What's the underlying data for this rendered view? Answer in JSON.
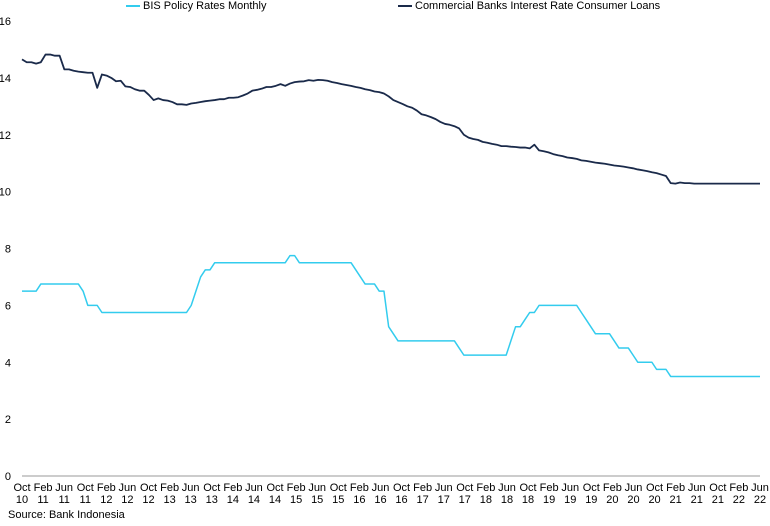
{
  "source": "Source: Bank Indonesia",
  "chart_data": {
    "type": "line",
    "title": "",
    "xlabel": "",
    "ylabel": "",
    "ylim": [
      0,
      16
    ],
    "yticks": [
      0,
      2,
      4,
      6,
      8,
      10,
      12,
      14,
      16
    ],
    "grid": false,
    "legend_position": "top",
    "x_tick_labels": [
      [
        "Oct",
        "10"
      ],
      [
        "Feb",
        "11"
      ],
      [
        "Jun",
        "11"
      ],
      [
        "Oct",
        "11"
      ],
      [
        "Feb",
        "12"
      ],
      [
        "Jun",
        "12"
      ],
      [
        "Oct",
        "12"
      ],
      [
        "Feb",
        "13"
      ],
      [
        "Jun",
        "13"
      ],
      [
        "Oct",
        "13"
      ],
      [
        "Feb",
        "14"
      ],
      [
        "Jun",
        "14"
      ],
      [
        "Oct",
        "14"
      ],
      [
        "Feb",
        "15"
      ],
      [
        "Jun",
        "15"
      ],
      [
        "Oct",
        "15"
      ],
      [
        "Feb",
        "16"
      ],
      [
        "Jun",
        "16"
      ],
      [
        "Oct",
        "16"
      ],
      [
        "Feb",
        "17"
      ],
      [
        "Jun",
        "17"
      ],
      [
        "Oct",
        "17"
      ],
      [
        "Feb",
        "18"
      ],
      [
        "Jun",
        "18"
      ],
      [
        "Oct",
        "18"
      ],
      [
        "Feb",
        "19"
      ],
      [
        "Jun",
        "19"
      ],
      [
        "Oct",
        "19"
      ],
      [
        "Feb",
        "20"
      ],
      [
        "Jun",
        "20"
      ],
      [
        "Oct",
        "20"
      ],
      [
        "Feb",
        "21"
      ],
      [
        "Jun",
        "21"
      ],
      [
        "Oct",
        "21"
      ],
      [
        "Feb",
        "22"
      ],
      [
        "Jun",
        "22"
      ]
    ],
    "series": [
      {
        "name": "BIS Policy Rates Monthly",
        "color": "#33ccee",
        "values": [
          6.5,
          6.5,
          6.5,
          6.5,
          6.75,
          6.75,
          6.75,
          6.75,
          6.75,
          6.75,
          6.75,
          6.75,
          6.75,
          6.5,
          6.0,
          6.0,
          6.0,
          5.75,
          5.75,
          5.75,
          5.75,
          5.75,
          5.75,
          5.75,
          5.75,
          5.75,
          5.75,
          5.75,
          5.75,
          5.75,
          5.75,
          5.75,
          5.75,
          5.75,
          5.75,
          5.75,
          6.0,
          6.5,
          7.0,
          7.25,
          7.25,
          7.5,
          7.5,
          7.5,
          7.5,
          7.5,
          7.5,
          7.5,
          7.5,
          7.5,
          7.5,
          7.5,
          7.5,
          7.5,
          7.5,
          7.5,
          7.5,
          7.75,
          7.75,
          7.5,
          7.5,
          7.5,
          7.5,
          7.5,
          7.5,
          7.5,
          7.5,
          7.5,
          7.5,
          7.5,
          7.5,
          7.25,
          7.0,
          6.75,
          6.75,
          6.75,
          6.5,
          6.5,
          5.25,
          5.0,
          4.75,
          4.75,
          4.75,
          4.75,
          4.75,
          4.75,
          4.75,
          4.75,
          4.75,
          4.75,
          4.75,
          4.75,
          4.75,
          4.5,
          4.25,
          4.25,
          4.25,
          4.25,
          4.25,
          4.25,
          4.25,
          4.25,
          4.25,
          4.25,
          4.75,
          5.25,
          5.25,
          5.5,
          5.75,
          5.75,
          6.0,
          6.0,
          6.0,
          6.0,
          6.0,
          6.0,
          6.0,
          6.0,
          6.0,
          5.75,
          5.5,
          5.25,
          5.0,
          5.0,
          5.0,
          5.0,
          4.75,
          4.5,
          4.5,
          4.5,
          4.25,
          4.0,
          4.0,
          4.0,
          4.0,
          3.75,
          3.75,
          3.75,
          3.5,
          3.5,
          3.5,
          3.5,
          3.5,
          3.5,
          3.5,
          3.5,
          3.5,
          3.5,
          3.5,
          3.5,
          3.5,
          3.5,
          3.5,
          3.5,
          3.5,
          3.5,
          3.5,
          3.5
        ]
      },
      {
        "name": "Commercial Banks Interest Rate Consumer Loans",
        "color": "#1a2a4a",
        "values": [
          14.65,
          14.55,
          14.55,
          14.5,
          14.55,
          14.82,
          14.82,
          14.78,
          14.78,
          14.3,
          14.3,
          14.25,
          14.22,
          14.2,
          14.18,
          14.18,
          13.65,
          14.12,
          14.08,
          14.0,
          13.88,
          13.9,
          13.7,
          13.68,
          13.6,
          13.55,
          13.55,
          13.4,
          13.22,
          13.28,
          13.22,
          13.2,
          13.15,
          13.07,
          13.07,
          13.05,
          13.1,
          13.12,
          13.15,
          13.18,
          13.2,
          13.22,
          13.25,
          13.25,
          13.3,
          13.3,
          13.32,
          13.38,
          13.45,
          13.55,
          13.58,
          13.62,
          13.68,
          13.68,
          13.72,
          13.78,
          13.72,
          13.8,
          13.85,
          13.87,
          13.88,
          13.92,
          13.9,
          13.93,
          13.92,
          13.9,
          13.85,
          13.82,
          13.78,
          13.75,
          13.72,
          13.68,
          13.65,
          13.6,
          13.57,
          13.52,
          13.5,
          13.45,
          13.35,
          13.22,
          13.15,
          13.08,
          13.0,
          12.95,
          12.85,
          12.72,
          12.68,
          12.62,
          12.55,
          12.45,
          12.38,
          12.35,
          12.3,
          12.22,
          12.0,
          11.9,
          11.85,
          11.82,
          11.75,
          11.72,
          11.68,
          11.65,
          11.6,
          11.6,
          11.58,
          11.57,
          11.55,
          11.55,
          11.52,
          11.65,
          11.45,
          11.42,
          11.38,
          11.32,
          11.28,
          11.25,
          11.2,
          11.18,
          11.15,
          11.1,
          11.08,
          11.05,
          11.02,
          11.0,
          10.98,
          10.95,
          10.92,
          10.9,
          10.88,
          10.85,
          10.82,
          10.78,
          10.75,
          10.72,
          10.68,
          10.65,
          10.6,
          10.55,
          10.3,
          10.28,
          10.32,
          10.3,
          10.3,
          10.28,
          10.28,
          10.28,
          10.28,
          10.28,
          10.28,
          10.28,
          10.28,
          10.28,
          10.28,
          10.28,
          10.28,
          10.28,
          10.28,
          10.28
        ]
      }
    ]
  }
}
